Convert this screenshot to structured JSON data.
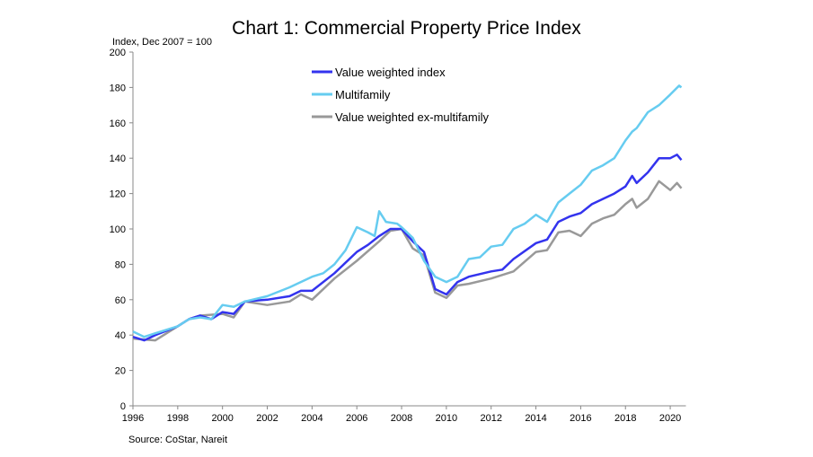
{
  "chart_data": {
    "type": "line",
    "title": "Chart 1: Commercial Property Price Index",
    "ylabel": "Index, Dec 2007 = 100",
    "source": "Source: CoStar, Nareit",
    "xlim": [
      1996,
      2020.7
    ],
    "ylim": [
      0,
      200
    ],
    "xticks": [
      "1996",
      "1998",
      "2000",
      "2002",
      "2004",
      "2006",
      "2008",
      "2010",
      "2012",
      "2014",
      "2016",
      "2018",
      "2020"
    ],
    "yticks": [
      "0",
      "20",
      "40",
      "60",
      "80",
      "100",
      "120",
      "140",
      "160",
      "180",
      "200"
    ],
    "grid": false,
    "legend": "top-center",
    "series": [
      {
        "name": "Value weighted index",
        "color": "#3333ee",
        "x": [
          1996,
          1996.5,
          1997,
          1998,
          1998.5,
          1999,
          1999.5,
          2000,
          2000.5,
          2001,
          2002,
          2003,
          2003.5,
          2004,
          2005,
          2006,
          2006.5,
          2007,
          2007.5,
          2008,
          2008.5,
          2009,
          2009.5,
          2010,
          2010.5,
          2011,
          2012,
          2012.5,
          2013,
          2014,
          2014.5,
          2015,
          2015.5,
          2016,
          2016.5,
          2017,
          2017.5,
          2018,
          2018.3,
          2018.5,
          2019,
          2019.5,
          2020,
          2020.3,
          2020.5
        ],
        "y": [
          39,
          37,
          40,
          45,
          49,
          51,
          49,
          53,
          52,
          59,
          60,
          62,
          65,
          65,
          75,
          87,
          91,
          96,
          100,
          100,
          93,
          87,
          66,
          63,
          70,
          73,
          76,
          77,
          83,
          92,
          94,
          104,
          107,
          109,
          114,
          117,
          120,
          124,
          130,
          126,
          132,
          140,
          140,
          142,
          139
        ]
      },
      {
        "name": "Multifamily",
        "color": "#66ccf0",
        "x": [
          1996,
          1996.5,
          1997,
          1998,
          1998.5,
          1999,
          1999.5,
          2000,
          2000.5,
          2001,
          2002,
          2003,
          2004,
          2004.5,
          2005,
          2005.5,
          2006,
          2006.5,
          2006.8,
          2007,
          2007.3,
          2007.8,
          2008,
          2008.5,
          2009,
          2009.5,
          2010,
          2010.5,
          2011,
          2011.5,
          2012,
          2012.5,
          2013,
          2013.5,
          2014,
          2014.5,
          2015,
          2015.5,
          2016,
          2016.5,
          2017,
          2017.5,
          2018,
          2018.3,
          2018.5,
          2019,
          2019.5,
          2020,
          2020.4,
          2020.5
        ],
        "y": [
          42,
          39,
          41,
          45,
          49,
          50,
          49,
          57,
          56,
          59,
          62,
          67,
          73,
          75,
          80,
          88,
          101,
          98,
          96,
          110,
          104,
          103,
          101,
          95,
          82,
          73,
          70,
          73,
          83,
          84,
          90,
          91,
          100,
          103,
          108,
          104,
          115,
          120,
          125,
          133,
          136,
          140,
          150,
          155,
          157,
          166,
          170,
          176,
          181,
          180
        ]
      },
      {
        "name": "Value weighted ex-multifamily",
        "color": "#999999",
        "x": [
          1996,
          1997,
          1998,
          1998.5,
          1999,
          2000,
          2000.5,
          2001,
          2002,
          2003,
          2003.5,
          2004,
          2005,
          2006,
          2007,
          2007.5,
          2008,
          2008.5,
          2009,
          2009.5,
          2010,
          2010.5,
          2011,
          2012,
          2013,
          2014,
          2014.5,
          2015,
          2015.5,
          2016,
          2016.5,
          2017,
          2017.5,
          2018,
          2018.3,
          2018.5,
          2019,
          2019.5,
          2020,
          2020.3,
          2020.5
        ],
        "y": [
          38,
          37,
          45,
          49,
          51,
          52,
          50,
          59,
          57,
          59,
          63,
          60,
          72,
          82,
          93,
          99,
          100,
          89,
          85,
          64,
          61,
          68,
          69,
          72,
          76,
          87,
          88,
          98,
          99,
          96,
          103,
          106,
          108,
          114,
          117,
          112,
          117,
          127,
          122,
          126,
          123
        ]
      }
    ]
  }
}
